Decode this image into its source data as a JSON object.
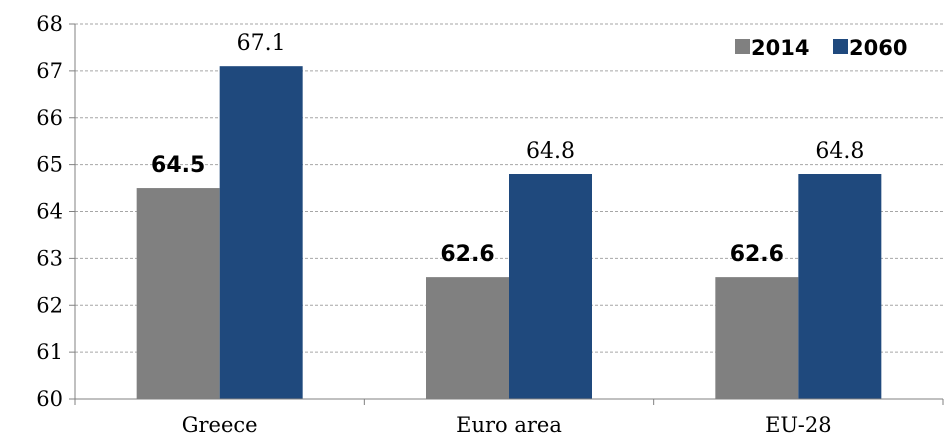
{
  "chart_data": {
    "type": "bar",
    "categories": [
      "Greece",
      "Euro area",
      "EU-28"
    ],
    "series": [
      {
        "name": "2014",
        "values": [
          64.5,
          62.6,
          62.6
        ],
        "color": "#808080",
        "label_style": "bold"
      },
      {
        "name": "2060",
        "values": [
          67.1,
          64.8,
          64.8
        ],
        "color": "#1F497D",
        "label_style": "plain"
      }
    ],
    "data_labels": [
      [
        "64.5",
        "62.6",
        "62.6"
      ],
      [
        "67.1",
        "64.8",
        "64.8"
      ]
    ],
    "ylim": [
      60,
      68
    ],
    "yticks": [
      60,
      61,
      62,
      63,
      64,
      65,
      66,
      67,
      68
    ],
    "ytick_labels": [
      "60",
      "61",
      "62",
      "63",
      "64",
      "65",
      "66",
      "67",
      "68"
    ],
    "grid": "horizontal dashed",
    "legend_position": "top-right",
    "title": "",
    "xlabel": "",
    "ylabel": ""
  }
}
